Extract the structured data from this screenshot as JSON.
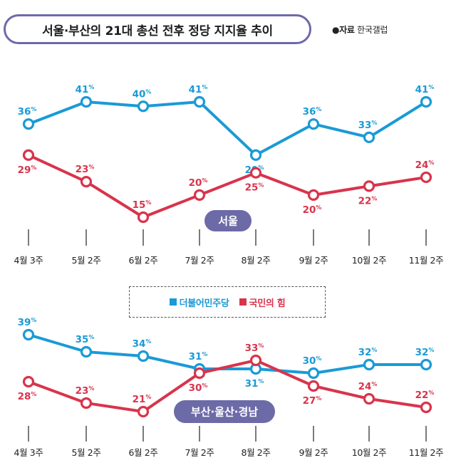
{
  "title": "서울·부산의 21대 총선 전후 정당 지지율 추이",
  "source": {
    "bullet": "●",
    "label": "자료",
    "text": "한국갤럽"
  },
  "legend": [
    {
      "name": "더불어민주당",
      "color": "#1a9ad6"
    },
    {
      "name": "국민의 힘",
      "color": "#d8344c"
    }
  ],
  "unit": "%",
  "chart_data": [
    {
      "type": "line",
      "region_label": "서울",
      "categories": [
        "4월 3주",
        "5월 2주",
        "6월 2주",
        "7월 2주",
        "8월 2주",
        "9월 2주",
        "10월 2주",
        "11월 2주"
      ],
      "series": [
        {
          "name": "더불어민주당",
          "color": "#1a9ad6",
          "values": [
            36,
            41,
            40,
            41,
            29,
            36,
            33,
            41
          ]
        },
        {
          "name": "국민의 힘",
          "color": "#d8344c",
          "values": [
            29,
            23,
            15,
            20,
            25,
            20,
            22,
            24
          ]
        }
      ]
    },
    {
      "type": "line",
      "region_label": "부산·울산·경남",
      "categories": [
        "4월 3주",
        "5월 2주",
        "6월 2주",
        "7월 2주",
        "8월 2주",
        "9월 2주",
        "10월 2주",
        "11월 2주"
      ],
      "series": [
        {
          "name": "더불어민주당",
          "color": "#1a9ad6",
          "values": [
            39,
            35,
            34,
            31,
            31,
            30,
            32,
            32
          ]
        },
        {
          "name": "국민의 힘",
          "color": "#d8344c",
          "values": [
            28,
            23,
            21,
            30,
            33,
            27,
            24,
            22
          ]
        }
      ]
    }
  ]
}
